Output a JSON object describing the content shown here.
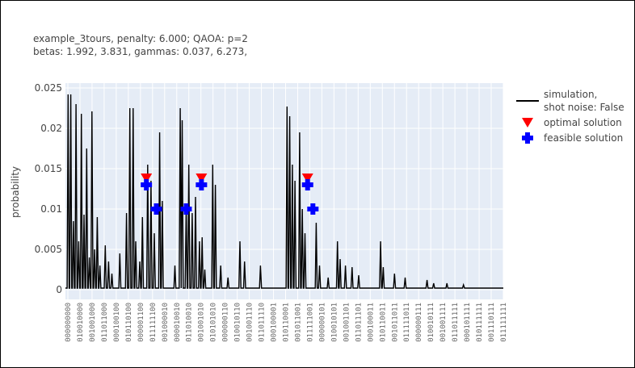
{
  "chart_data": {
    "type": "line",
    "title_line1": "example_3tours, penalty: 6.000; QAOA: p=2",
    "title_line2": "betas: 1.992, 3.831, gammas: 0.037, 6.273,",
    "ylabel": "probability",
    "xlabel": "",
    "ylim": [
      0,
      0.025
    ],
    "yticks": [
      0,
      0.005,
      0.01,
      0.015,
      0.02,
      0.025
    ],
    "ytick_labels": [
      "0",
      "0.005",
      "0.01",
      "0.015",
      "0.02",
      "0.025"
    ],
    "xtick_labels": [
      "000000000",
      "010010000",
      "001001000",
      "011011000",
      "000100100",
      "010110100",
      "000001100",
      "011111100",
      "001000010",
      "000010010",
      "011010010",
      "001001010",
      "010101010",
      "000000110",
      "010010110",
      "001001110",
      "011011110",
      "000100001",
      "010110001",
      "001011001",
      "011111001",
      "000000101",
      "010010101",
      "001001101",
      "011011101",
      "000100011",
      "010110011",
      "001011011",
      "011111011",
      "000000111",
      "010010111",
      "001001111",
      "011011111",
      "000101111",
      "010111111",
      "001110111",
      "011111111"
    ],
    "legend_position": "top-right",
    "series": [
      {
        "name": "simulation,\nshot noise: False",
        "color": "#000000",
        "peaks": [
          [
            0.4,
            0.0242
          ],
          [
            0.8,
            0.0242
          ],
          [
            1.2,
            0.0085
          ],
          [
            1.6,
            0.023
          ],
          [
            2.0,
            0.006
          ],
          [
            2.4,
            0.0218
          ],
          [
            2.8,
            0.0093
          ],
          [
            3.2,
            0.0175
          ],
          [
            3.6,
            0.004
          ],
          [
            4.0,
            0.0221
          ],
          [
            4.4,
            0.005
          ],
          [
            4.8,
            0.009
          ],
          [
            5.2,
            0.003
          ],
          [
            6.0,
            0.0055
          ],
          [
            6.5,
            0.0035
          ],
          [
            7.0,
            0.002
          ],
          [
            8.2,
            0.0045
          ],
          [
            9.2,
            0.0095
          ],
          [
            9.7,
            0.0225
          ],
          [
            10.2,
            0.0225
          ],
          [
            10.6,
            0.006
          ],
          [
            11.2,
            0.0035
          ],
          [
            11.6,
            0.009
          ],
          [
            12.4,
            0.0155
          ],
          [
            12.9,
            0.0135
          ],
          [
            13.4,
            0.007
          ],
          [
            14.2,
            0.0195
          ],
          [
            14.6,
            0.011
          ],
          [
            16.5,
            0.003
          ],
          [
            17.3,
            0.0225
          ],
          [
            17.6,
            0.021
          ],
          [
            18.2,
            0.0105
          ],
          [
            18.6,
            0.0155
          ],
          [
            19.1,
            0.0095
          ],
          [
            19.6,
            0.0115
          ],
          [
            20.2,
            0.006
          ],
          [
            20.6,
            0.0065
          ],
          [
            21.0,
            0.0025
          ],
          [
            22.2,
            0.0155
          ],
          [
            22.6,
            0.013
          ],
          [
            23.4,
            0.003
          ],
          [
            24.5,
            0.0015
          ],
          [
            26.3,
            0.006
          ],
          [
            27.0,
            0.0035
          ],
          [
            29.4,
            0.003
          ],
          [
            33.4,
            0.0227
          ],
          [
            33.8,
            0.0215
          ],
          [
            34.2,
            0.0155
          ],
          [
            34.6,
            0.0135
          ],
          [
            35.3,
            0.0195
          ],
          [
            35.7,
            0.01
          ],
          [
            36.1,
            0.007
          ],
          [
            37.8,
            0.0083
          ],
          [
            38.3,
            0.003
          ],
          [
            39.6,
            0.0015
          ],
          [
            41.0,
            0.006
          ],
          [
            41.4,
            0.0038
          ],
          [
            42.2,
            0.003
          ],
          [
            43.2,
            0.0028
          ],
          [
            44.2,
            0.0018
          ],
          [
            47.5,
            0.006
          ],
          [
            47.9,
            0.0028
          ],
          [
            49.6,
            0.002
          ],
          [
            51.2,
            0.0015
          ],
          [
            54.5,
            0.0012
          ],
          [
            55.5,
            0.0008
          ],
          [
            57.5,
            0.0008
          ],
          [
            60.0,
            0.0006
          ]
        ],
        "baseline": 0.0002
      }
    ],
    "markers": [
      {
        "name": "optimal solution",
        "symbol": "triangle-down",
        "color": "#ff0000",
        "points": [
          [
            12.2,
            0.0138
          ],
          [
            20.5,
            0.0138
          ],
          [
            36.5,
            0.0138
          ]
        ]
      },
      {
        "name": "feasible solution",
        "symbol": "cross",
        "color": "#0000ff",
        "points": [
          [
            12.2,
            0.013
          ],
          [
            13.7,
            0.01
          ],
          [
            18.2,
            0.01
          ],
          [
            20.5,
            0.013
          ],
          [
            36.5,
            0.013
          ],
          [
            37.3,
            0.01
          ]
        ]
      }
    ],
    "xlim": [
      0,
      66
    ]
  }
}
